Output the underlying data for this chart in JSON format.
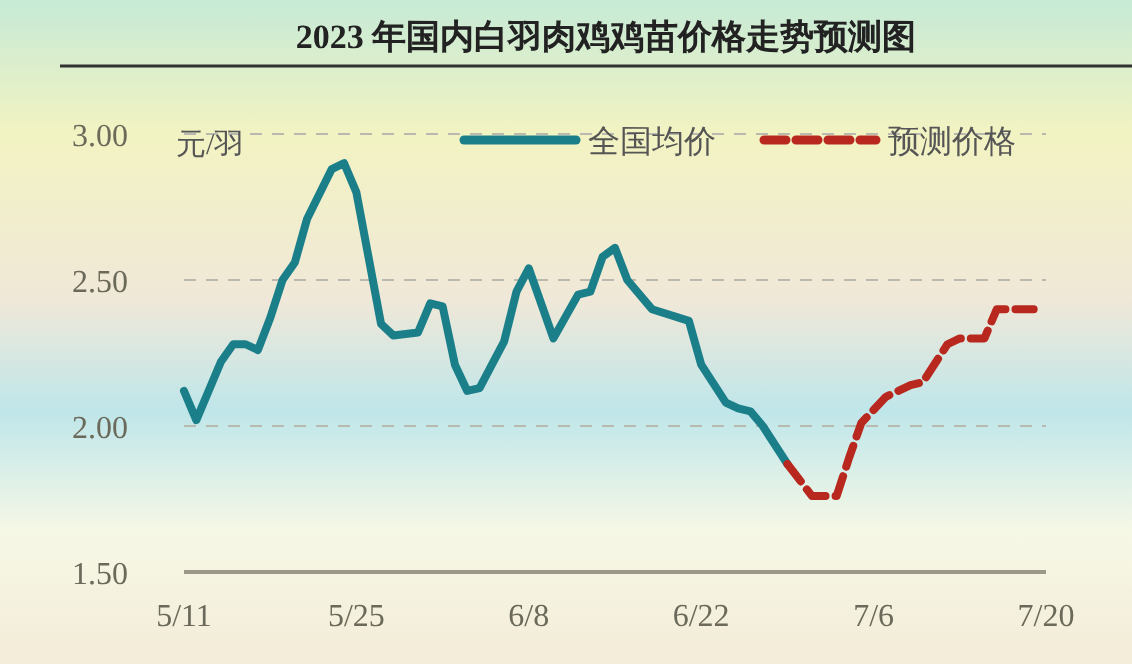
{
  "chart_data": {
    "type": "line",
    "title": "2023 年国内白羽肉鸡鸡苗价格走势预测图",
    "ylabel": "元/羽",
    "xlim": [
      "--05-11",
      "--07-20"
    ],
    "xticks": [
      {
        "value": "--05-11",
        "label": "5/11"
      },
      {
        "value": "--05-25",
        "label": "5/25"
      },
      {
        "value": "--06-08",
        "label": "6/8"
      },
      {
        "value": "--06-22",
        "label": "6/22"
      },
      {
        "value": "--07-06",
        "label": "7/6"
      },
      {
        "value": "--07-20",
        "label": "7/20"
      }
    ],
    "ylim": [
      1.5,
      3.0
    ],
    "yticks": [
      {
        "value": 1.5,
        "label": "1.50"
      },
      {
        "value": 2.0,
        "label": "2.00"
      },
      {
        "value": 2.5,
        "label": "2.50"
      },
      {
        "value": 3.0,
        "label": "3.00"
      }
    ],
    "grid": "y",
    "legend": "top right",
    "series": [
      {
        "name": "全国均价",
        "color": "#1b7f8a",
        "line_style": "solid",
        "x": [
          "--05-11",
          "--05-12",
          "--05-14",
          "--05-15",
          "--05-16",
          "--05-17",
          "--05-18",
          "--05-19",
          "--05-20",
          "--05-21",
          "--05-23",
          "--05-24",
          "--05-25",
          "--05-27",
          "--05-28",
          "--05-30",
          "--05-31",
          "--06-01",
          "--06-02",
          "--06-03",
          "--06-04",
          "--06-06",
          "--06-07",
          "--06-08",
          "--06-10",
          "--06-12",
          "--06-13",
          "--06-14",
          "--06-15",
          "--06-16",
          "--06-18",
          "--06-21",
          "--06-22",
          "--06-24",
          "--06-25",
          "--06-26",
          "--06-27",
          "--06-29"
        ],
        "values": [
          2.12,
          2.02,
          2.22,
          2.28,
          2.28,
          2.26,
          2.37,
          2.5,
          2.56,
          2.71,
          2.88,
          2.9,
          2.8,
          2.35,
          2.31,
          2.32,
          2.42,
          2.41,
          2.21,
          2.12,
          2.13,
          2.29,
          2.46,
          2.54,
          2.3,
          2.45,
          2.46,
          2.58,
          2.61,
          2.5,
          2.4,
          2.36,
          2.21,
          2.08,
          2.06,
          2.05,
          2.0,
          1.87
        ]
      },
      {
        "name": "预测价格",
        "color": "#b8281e",
        "line_style": "dashed",
        "x": [
          "--06-29",
          "--07-01",
          "--07-03",
          "--07-04",
          "--07-05",
          "--07-07",
          "--07-09",
          "--07-10",
          "--07-12",
          "--07-13",
          "--07-15",
          "--07-16",
          "--07-18",
          "--07-19"
        ],
        "values": [
          1.87,
          1.76,
          1.76,
          1.89,
          2.01,
          2.1,
          2.14,
          2.15,
          2.28,
          2.3,
          2.3,
          2.4,
          2.4,
          2.4
        ]
      }
    ]
  }
}
